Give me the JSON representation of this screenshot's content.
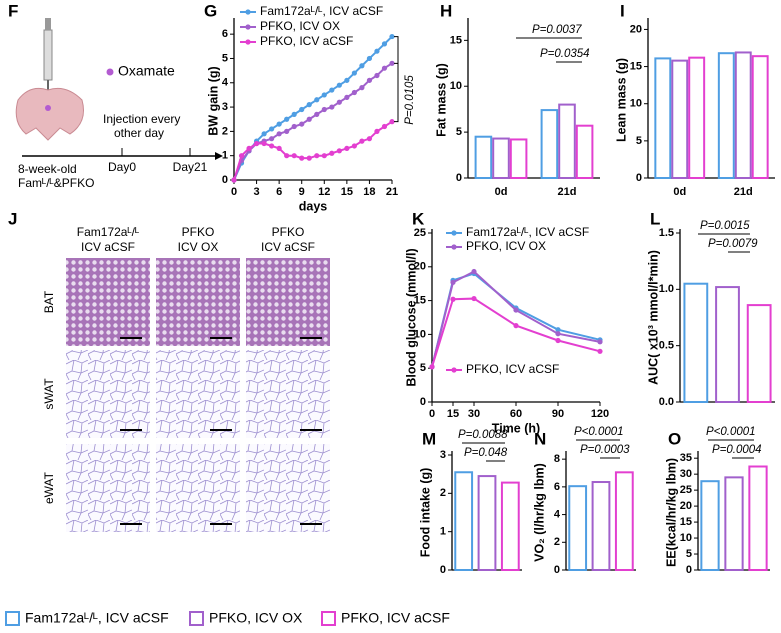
{
  "diagram": {
    "panel": "F",
    "reagent": "Oxamate",
    "injection": [
      "Injection every",
      "other day"
    ],
    "mice": [
      "8-week-old",
      "Famᴸ/ᴸ&PFKO"
    ],
    "day_start": "Day0",
    "day_end": "Day21"
  },
  "histology": {
    "panel": "J",
    "columns": [
      [
        "Fam172aᴸ/ᴸ",
        "ICV aCSF"
      ],
      [
        "PFKO",
        "ICV OX"
      ],
      [
        "PFKO",
        "ICV aCSF"
      ]
    ],
    "rows": [
      "BAT",
      "sWAT",
      "eWAT"
    ]
  },
  "chart_data": [
    {
      "panel": "G",
      "type": "line",
      "xlabel": "days",
      "ylabel": "BW gain (g)",
      "x": [
        0,
        1,
        2,
        3,
        4,
        5,
        6,
        7,
        8,
        9,
        10,
        11,
        12,
        13,
        14,
        15,
        16,
        17,
        18,
        19,
        20,
        21
      ],
      "xlim": [
        0,
        21
      ],
      "xticks": [
        0,
        3,
        6,
        9,
        12,
        15,
        18,
        21
      ],
      "ylim": [
        0,
        6.5
      ],
      "yticks": [
        0,
        1,
        2,
        3,
        4,
        5,
        6
      ],
      "series": [
        {
          "name": "Fam172aᴸ/ᴸ, ICV aCSF",
          "color": "#4f9ee3",
          "values": [
            0,
            0.7,
            1.2,
            1.6,
            1.9,
            2.1,
            2.3,
            2.5,
            2.7,
            2.9,
            3.1,
            3.3,
            3.5,
            3.7,
            3.9,
            4.1,
            4.4,
            4.7,
            5.0,
            5.3,
            5.6,
            5.9
          ]
        },
        {
          "name": "PFKO, ICV OX",
          "color": "#a160cc",
          "values": [
            0,
            0.8,
            1.2,
            1.5,
            1.6,
            1.7,
            1.9,
            2.0,
            2.2,
            2.3,
            2.5,
            2.7,
            2.9,
            3.0,
            3.2,
            3.4,
            3.6,
            3.8,
            4.1,
            4.3,
            4.6,
            4.8
          ]
        },
        {
          "name": "PFKO, ICV aCSF",
          "color": "#e33fd0",
          "values": [
            0,
            1.0,
            1.3,
            1.5,
            1.5,
            1.4,
            1.3,
            1.0,
            1.0,
            0.9,
            0.9,
            1.0,
            1.0,
            1.1,
            1.2,
            1.3,
            1.4,
            1.6,
            1.7,
            2.0,
            2.2,
            2.4
          ]
        }
      ],
      "annotations": [
        "P=0.0105"
      ]
    },
    {
      "panel": "H",
      "type": "bar",
      "ylabel": "Fat mass (g)",
      "categories": [
        "0d",
        "21d"
      ],
      "ylim": [
        0,
        17
      ],
      "yticks": [
        0,
        5,
        10,
        15
      ],
      "series": [
        {
          "name": "Fam172aᴸ/ᴸ, ICV aCSF",
          "color": "#4f9ee3",
          "values": [
            4.5,
            7.4
          ]
        },
        {
          "name": "PFKO, ICV OX",
          "color": "#a160cc",
          "values": [
            4.3,
            8.0
          ]
        },
        {
          "name": "PFKO, ICV aCSF",
          "color": "#e33fd0",
          "values": [
            4.2,
            5.7
          ]
        }
      ],
      "annotations": [
        "P=0.0037",
        "P=0.0354"
      ]
    },
    {
      "panel": "I",
      "type": "bar",
      "ylabel": "Lean mass (g)",
      "categories": [
        "0d",
        "21d"
      ],
      "ylim": [
        0,
        21
      ],
      "yticks": [
        0,
        5,
        10,
        15,
        20
      ],
      "series": [
        {
          "name": "Fam172aᴸ/ᴸ, ICV aCSF",
          "color": "#4f9ee3",
          "values": [
            16.1,
            16.8
          ]
        },
        {
          "name": "PFKO, ICV OX",
          "color": "#a160cc",
          "values": [
            15.8,
            16.9
          ]
        },
        {
          "name": "PFKO, ICV aCSF",
          "color": "#e33fd0",
          "values": [
            16.2,
            16.4
          ]
        }
      ],
      "annotations": []
    },
    {
      "panel": "K",
      "type": "line",
      "xlabel": "Time (h)",
      "ylabel": "Blood glucose (mmol/l)",
      "x": [
        0,
        15,
        30,
        60,
        90,
        120
      ],
      "xlim": [
        0,
        120
      ],
      "xticks": [
        0,
        15,
        30,
        60,
        90,
        120
      ],
      "ylim": [
        0,
        25
      ],
      "yticks": [
        0,
        5,
        10,
        15,
        20,
        25
      ],
      "series": [
        {
          "name": "Fam172aᴸ/ᴸ, ICV aCSF",
          "color": "#4f9ee3",
          "values": [
            5.2,
            18.0,
            19.0,
            13.9,
            10.7,
            9.2
          ]
        },
        {
          "name": "PFKO, ICV OX",
          "color": "#a160cc",
          "values": [
            5.2,
            17.7,
            19.3,
            13.6,
            10.1,
            8.9
          ]
        },
        {
          "name": "PFKO, ICV aCSF",
          "color": "#e33fd0",
          "values": [
            5.2,
            15.2,
            15.3,
            11.3,
            9.1,
            7.5
          ]
        }
      ],
      "annotations": []
    },
    {
      "panel": "L",
      "type": "bar",
      "ylabel": "AUC( x10³ mmol/l*min)",
      "ylim": [
        0,
        1.5
      ],
      "yticks": [
        {
          "value": 0,
          "label": "0.0"
        },
        0.5,
        {
          "value": 1,
          "label": "1.0"
        },
        1.5
      ],
      "values": [
        1.05,
        1.02,
        0.86
      ],
      "colors": [
        "#4f9ee3",
        "#a160cc",
        "#e33fd0"
      ],
      "annotations": [
        "P=0.0015",
        "P=0.0079"
      ]
    },
    {
      "panel": "M",
      "type": "bar",
      "ylabel": "Food intake (g)",
      "ylim": [
        0,
        3
      ],
      "yticks": [
        0,
        1,
        2,
        3
      ],
      "values": [
        2.55,
        2.45,
        2.28
      ],
      "colors": [
        "#4f9ee3",
        "#a160cc",
        "#e33fd0"
      ],
      "annotations": [
        "P=0.0088",
        "P=0.048"
      ]
    },
    {
      "panel": "N",
      "type": "bar",
      "ylabel": "VO₂ (l/hr/kg lbm)",
      "ylim": [
        0,
        8.3
      ],
      "yticks": [
        0,
        2,
        4,
        6,
        8
      ],
      "values": [
        6.05,
        6.35,
        7.05
      ],
      "colors": [
        "#4f9ee3",
        "#a160cc",
        "#e33fd0"
      ],
      "annotations": [
        "P<0.0001",
        "P=0.0003"
      ]
    },
    {
      "panel": "O",
      "type": "bar",
      "ylabel": "EE(kcal/hr/kg lbm)",
      "ylim": [
        0,
        36
      ],
      "yticks": [
        0,
        5,
        10,
        15,
        20,
        25,
        30,
        35
      ],
      "values": [
        27.8,
        29.0,
        32.4
      ],
      "colors": [
        "#4f9ee3",
        "#a160cc",
        "#e33fd0"
      ],
      "annotations": [
        "P<0.0001",
        "P=0.0004"
      ]
    }
  ]
}
